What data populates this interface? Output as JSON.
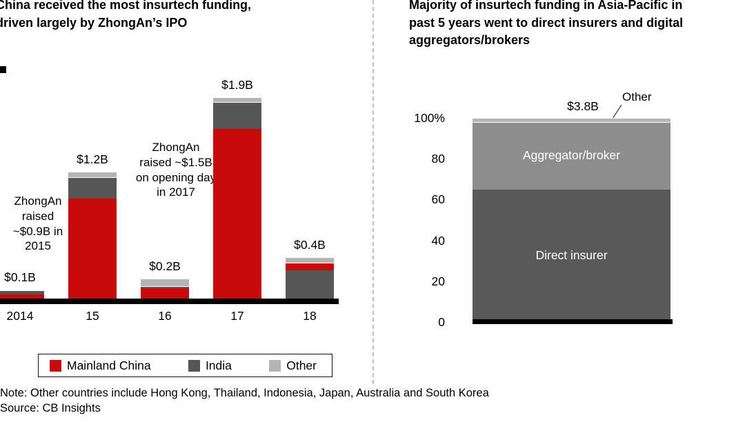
{
  "chart_data": [
    {
      "type": "bar",
      "stacked": true,
      "title": "China received the most insurtech funding,\ndriven largely by ZhongAn’s IPO",
      "unit": "USD billions",
      "ylim": [
        0,
        2.0
      ],
      "categories": [
        "2014",
        "15",
        "16",
        "17",
        "18"
      ],
      "legend": [
        {
          "label": "Mainland China",
          "color": "#c90a0a"
        },
        {
          "label": "India",
          "color": "#565656"
        },
        {
          "label": "Other",
          "color": "#b4b4b4"
        }
      ],
      "bars": [
        {
          "category": "2014",
          "total_label": "$0.1B",
          "total": 0.1,
          "segments": [
            {
              "series": "Mainland China",
              "value": 0.05
            },
            {
              "series": "India",
              "value": 0.04
            },
            {
              "series": "Other",
              "value": 0.01
            }
          ]
        },
        {
          "category": "15",
          "total_label": "$1.2B",
          "total": 1.2,
          "segments": [
            {
              "series": "Mainland China",
              "value": 0.95
            },
            {
              "series": "India",
              "value": 0.2
            },
            {
              "series": "Other",
              "value": 0.05
            }
          ]
        },
        {
          "category": "16",
          "total_label": "$0.2B",
          "total": 0.2,
          "segments": [
            {
              "series": "Mainland China",
              "value": 0.11
            },
            {
              "series": "India",
              "value": 0.02
            },
            {
              "series": "Other",
              "value": 0.07
            }
          ]
        },
        {
          "category": "17",
          "total_label": "$1.9B",
          "total": 1.9,
          "segments": [
            {
              "series": "Mainland China",
              "value": 1.6
            },
            {
              "series": "India",
              "value": 0.25
            },
            {
              "series": "Other",
              "value": 0.05
            }
          ]
        },
        {
          "category": "18",
          "total_label": "$0.4B",
          "total": 0.4,
          "segments": [
            {
              "series": "India",
              "value": 0.28
            },
            {
              "series": "Mainland China",
              "value": 0.07
            },
            {
              "series": "Other",
              "value": 0.05
            }
          ]
        }
      ],
      "annotations": [
        {
          "text": "ZhongAn\nraised\n~$0.9B\nin 2015"
        },
        {
          "text": "ZhongAn\nraised\n~$1.5B on\nopening\nday in 2017"
        }
      ]
    },
    {
      "type": "bar",
      "stacked_percent": true,
      "title": "Majority of insurtech funding in Asia-Pacific in\npast 5 years went to direct insurers and digital\naggregators/brokers",
      "total_label": "$3.8B",
      "callout_label": "Other",
      "yticks": [
        "100%",
        "80",
        "60",
        "40",
        "20",
        "0"
      ],
      "segments": [
        {
          "name": "Direct insurer",
          "pct": 65,
          "color": "#595959"
        },
        {
          "name": "Aggregator/broker",
          "pct": 33,
          "color": "#8d8d8d"
        },
        {
          "name": "Other",
          "pct": 2,
          "color": "#b4b4b4"
        }
      ]
    }
  ],
  "footer": {
    "note": "Note: Other countries include Hong Kong, Thailand, Indonesia, Japan, Australia and South Korea",
    "source": "Source: CB Insights"
  }
}
